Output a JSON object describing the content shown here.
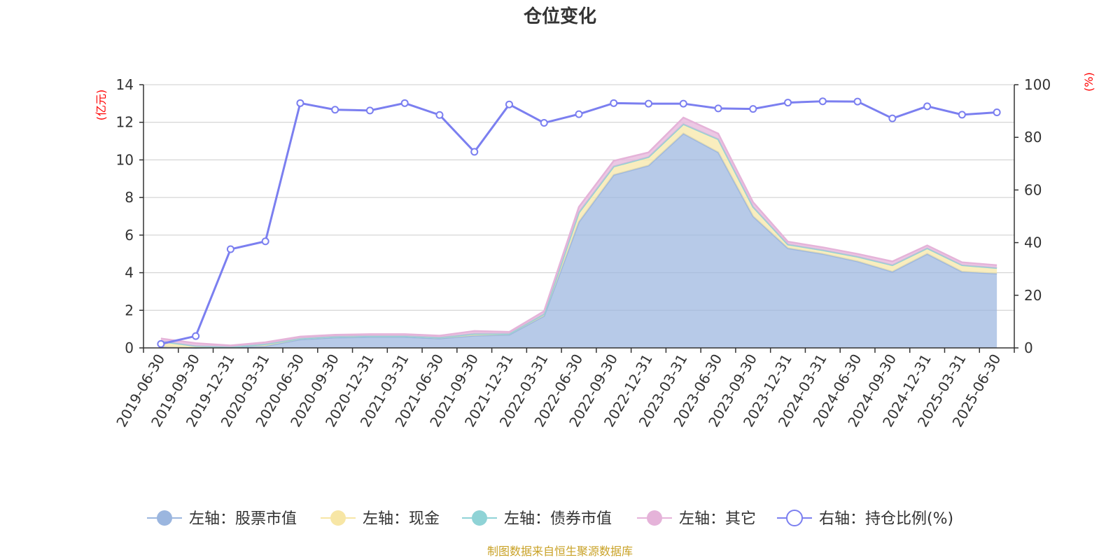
{
  "chart_data": {
    "type": "area",
    "title": "仓位变化",
    "left_unit": "(亿元)",
    "right_unit": "(%)",
    "left_ylim": [
      0,
      14
    ],
    "left_ticks": [
      0,
      2,
      4,
      6,
      8,
      10,
      12,
      14
    ],
    "right_ylim": [
      0,
      100
    ],
    "right_ticks": [
      0,
      20,
      40,
      60,
      80,
      100
    ],
    "grid": true,
    "legend_position": "bottom",
    "x": [
      "2019-06-30",
      "2019-09-30",
      "2019-12-31",
      "2020-03-31",
      "2020-06-30",
      "2020-09-30",
      "2020-12-31",
      "2021-03-31",
      "2021-06-30",
      "2021-09-30",
      "2021-12-31",
      "2022-03-31",
      "2022-06-30",
      "2022-09-30",
      "2022-12-31",
      "2023-03-31",
      "2023-06-30",
      "2023-09-30",
      "2023-12-31",
      "2024-03-31",
      "2024-06-30",
      "2024-09-30",
      "2024-12-31",
      "2025-03-31",
      "2025-06-30"
    ],
    "series": [
      {
        "name": "左轴：股票市值",
        "axis": "left",
        "stack": true,
        "color": "#9bb6df",
        "values": [
          0.05,
          0.0,
          0.05,
          0.1,
          0.45,
          0.55,
          0.58,
          0.58,
          0.5,
          0.65,
          0.7,
          1.7,
          6.7,
          9.2,
          9.7,
          11.4,
          10.4,
          7.0,
          5.3,
          5.0,
          4.6,
          4.05,
          5.0,
          4.05,
          3.95
        ]
      },
      {
        "name": "左轴：现金",
        "axis": "left",
        "stack": true,
        "color": "#f7e6a5",
        "values": [
          0.3,
          0.1,
          0.0,
          0.1,
          0.05,
          0.05,
          0.05,
          0.05,
          0.05,
          0.1,
          0.05,
          0.1,
          0.5,
          0.45,
          0.45,
          0.5,
          0.7,
          0.5,
          0.2,
          0.2,
          0.25,
          0.35,
          0.3,
          0.35,
          0.3
        ]
      },
      {
        "name": "左轴：债券市值",
        "axis": "left",
        "stack": true,
        "color": "#8fd3d6",
        "values": [
          0,
          0,
          0,
          0,
          0,
          0,
          0,
          0,
          0,
          0,
          0,
          0,
          0,
          0,
          0,
          0,
          0,
          0,
          0,
          0,
          0,
          0,
          0,
          0,
          0
        ]
      },
      {
        "name": "左轴：其它",
        "axis": "left",
        "stack": true,
        "color": "#e5b3d9",
        "values": [
          0.15,
          0.15,
          0.08,
          0.1,
          0.1,
          0.1,
          0.1,
          0.1,
          0.1,
          0.15,
          0.1,
          0.15,
          0.3,
          0.3,
          0.25,
          0.35,
          0.3,
          0.25,
          0.15,
          0.15,
          0.15,
          0.2,
          0.15,
          0.15,
          0.15
        ]
      },
      {
        "name": "右轴：持仓比例(%)",
        "axis": "right",
        "stack": false,
        "color": "#7b7ff0",
        "values": [
          1.5,
          4.5,
          37.5,
          40.5,
          93.0,
          90.5,
          90.2,
          93.0,
          88.5,
          74.5,
          92.5,
          85.5,
          88.8,
          93.0,
          92.8,
          92.8,
          91.0,
          90.8,
          93.2,
          93.7,
          93.6,
          87.2,
          91.8,
          88.6,
          89.5
        ]
      }
    ]
  },
  "source": "制图数据来自恒生聚源数据库"
}
